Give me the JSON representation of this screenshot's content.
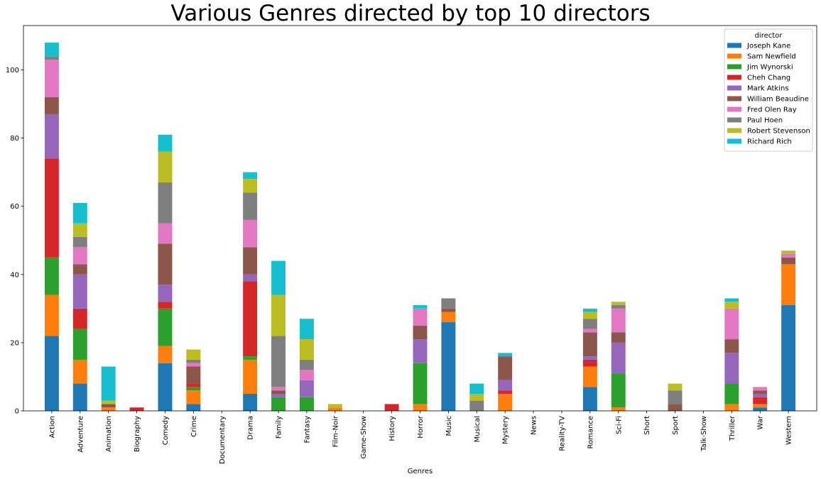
{
  "chart_data": {
    "type": "bar",
    "stacked": true,
    "title": "Various Genres directed by top 10 directors",
    "xlabel": "Genres",
    "ylabel": "",
    "ylim": [
      0,
      113
    ],
    "yticks": [
      0,
      20,
      40,
      60,
      80,
      100
    ],
    "grid": false,
    "legend_title": "director",
    "legend_position": "top-right",
    "categories": [
      "Action",
      "Adventure",
      "Animation",
      "Biography",
      "Comedy",
      "Crime",
      "Documentary",
      "Drama",
      "Family",
      "Fantasy",
      "Film-Noir",
      "Game-Show",
      "History",
      "Horror",
      "Music",
      "Musical",
      "Mystery",
      "News",
      "Reality-TV",
      "Romance",
      "Sci-Fi",
      "Short",
      "Sport",
      "Talk-Show",
      "Thriller",
      "War",
      "Western"
    ],
    "series": [
      {
        "name": "Joseph Kane",
        "color": "#1f77b4",
        "values": [
          22,
          8,
          0,
          0,
          14,
          2,
          0,
          5,
          0,
          0,
          0,
          0,
          0,
          0,
          26,
          0,
          0,
          0,
          0,
          7,
          0,
          0,
          0,
          0,
          0,
          1,
          31
        ]
      },
      {
        "name": "Sam Newfield",
        "color": "#ff7f0e",
        "values": [
          12,
          7,
          1,
          0,
          5,
          4,
          0,
          10,
          0,
          0,
          1,
          0,
          0,
          2,
          3,
          0,
          5,
          0,
          0,
          6,
          1,
          0,
          0,
          0,
          2,
          1,
          12
        ]
      },
      {
        "name": "Jim Wynorski",
        "color": "#2ca02c",
        "values": [
          11,
          9,
          0,
          0,
          11,
          1,
          0,
          1,
          4,
          4,
          0,
          0,
          0,
          12,
          0,
          0,
          0,
          0,
          0,
          0,
          10,
          0,
          0,
          0,
          6,
          0,
          0
        ]
      },
      {
        "name": "Cheh Chang",
        "color": "#d62728",
        "values": [
          29,
          6,
          0,
          1,
          2,
          1,
          0,
          22,
          0,
          0,
          0,
          0,
          2,
          0,
          0,
          0,
          1,
          0,
          0,
          2,
          0,
          0,
          0,
          0,
          0,
          2,
          0
        ]
      },
      {
        "name": "Mark Atkins",
        "color": "#9467bd",
        "values": [
          13,
          10,
          0,
          0,
          5,
          0,
          0,
          2,
          1,
          5,
          0,
          0,
          0,
          7,
          0,
          0,
          3,
          0,
          0,
          1,
          9,
          0,
          0,
          0,
          9,
          1,
          0
        ]
      },
      {
        "name": "William Beaudine",
        "color": "#8c564b",
        "values": [
          5,
          3,
          1,
          0,
          12,
          5,
          0,
          8,
          1,
          0,
          0,
          0,
          0,
          4,
          1,
          0,
          7,
          0,
          0,
          7,
          3,
          0,
          2,
          0,
          4,
          1,
          2
        ]
      },
      {
        "name": "Fred Olen Ray",
        "color": "#e377c2",
        "values": [
          11,
          5,
          0,
          0,
          6,
          1,
          0,
          8,
          1,
          3,
          0,
          0,
          0,
          5,
          0,
          0,
          0,
          0,
          0,
          1,
          7,
          0,
          0,
          0,
          9,
          1,
          1
        ]
      },
      {
        "name": "Paul Hoen",
        "color": "#7f7f7f",
        "values": [
          1,
          3,
          0,
          0,
          12,
          1,
          0,
          8,
          15,
          3,
          0,
          0,
          0,
          0,
          3,
          3,
          0,
          0,
          0,
          3,
          1,
          0,
          4,
          0,
          0,
          0,
          0
        ]
      },
      {
        "name": "Robert Stevenson",
        "color": "#bcbd22",
        "values": [
          0,
          4,
          1,
          0,
          9,
          3,
          0,
          4,
          12,
          6,
          1,
          0,
          0,
          0,
          0,
          2,
          0,
          0,
          0,
          2,
          1,
          0,
          2,
          0,
          2,
          0,
          1
        ]
      },
      {
        "name": "Richard Rich",
        "color": "#17becf",
        "values": [
          4,
          6,
          10,
          0,
          5,
          0,
          0,
          2,
          10,
          6,
          0,
          0,
          0,
          1,
          0,
          3,
          1,
          0,
          0,
          1,
          0,
          0,
          0,
          0,
          1,
          0,
          0
        ]
      }
    ]
  }
}
